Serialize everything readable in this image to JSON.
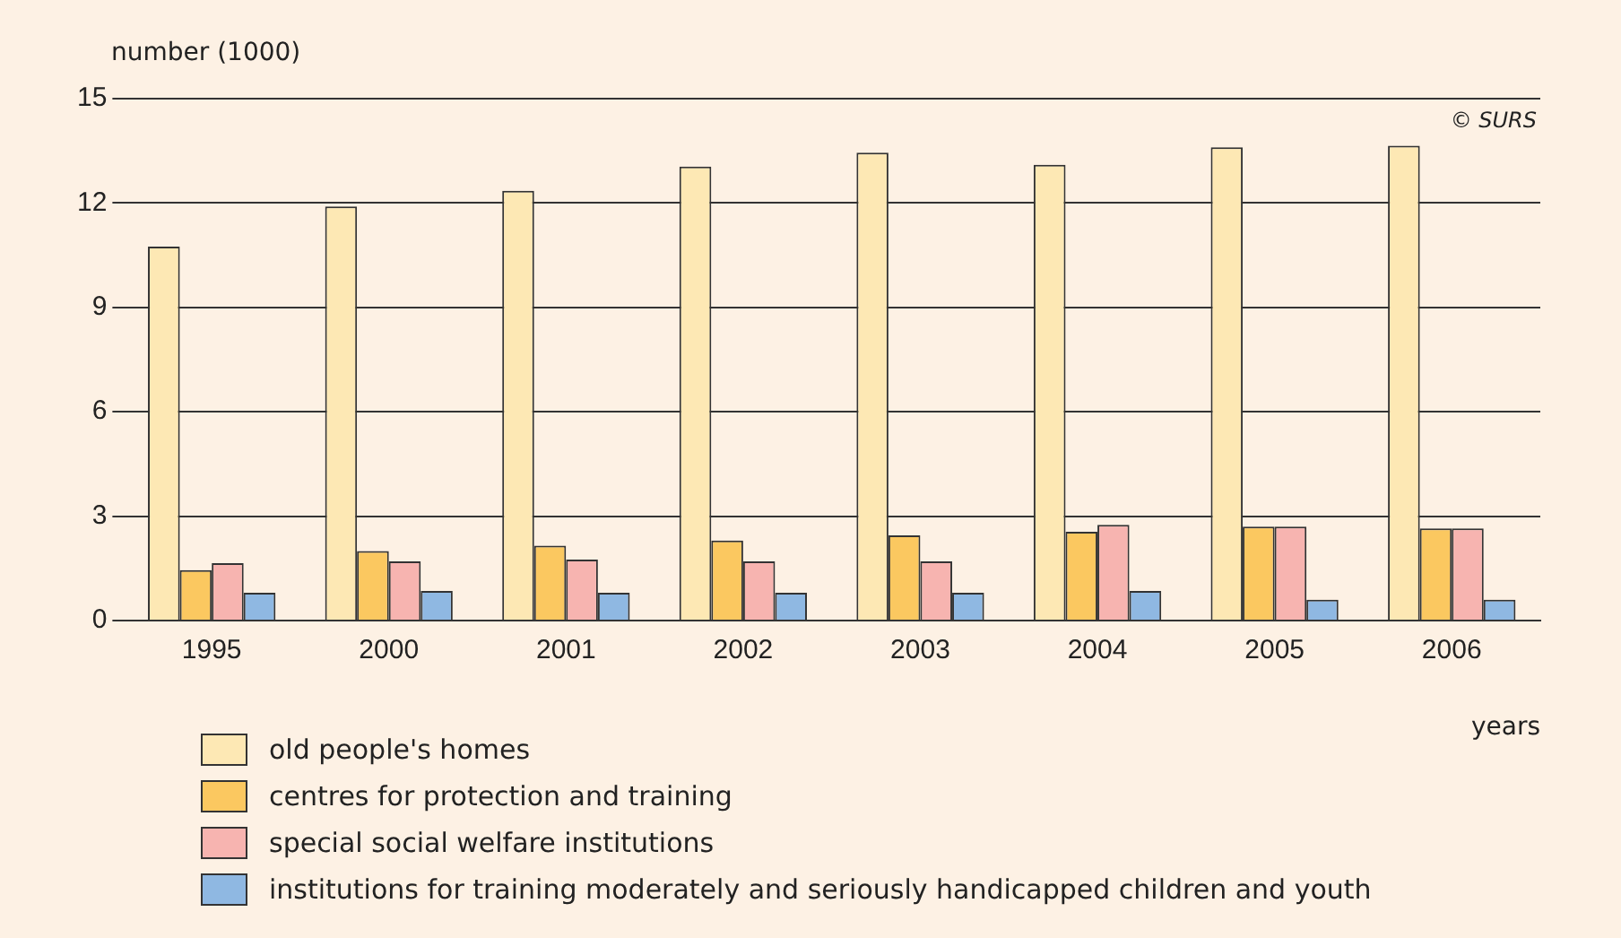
{
  "chart_data": {
    "type": "bar",
    "ylabel": "number (1000)",
    "xlabel": "years",
    "annotations": [
      "© SURS"
    ],
    "categories": [
      "1995",
      "2000",
      "2001",
      "2002",
      "2003",
      "2004",
      "2005",
      "2006"
    ],
    "series": [
      {
        "name": "old people's homes",
        "color": "#fde8b4",
        "values": [
          10.75,
          11.9,
          12.35,
          13.05,
          13.45,
          13.1,
          13.6,
          13.65
        ]
      },
      {
        "name": "centres for protection and training",
        "color": "#fbc860",
        "values": [
          1.45,
          2.0,
          2.15,
          2.3,
          2.45,
          2.55,
          2.7,
          2.65
        ]
      },
      {
        "name": "special social welfare institutions",
        "color": "#f7b4b0",
        "values": [
          1.65,
          1.7,
          1.75,
          1.7,
          1.7,
          2.75,
          2.7,
          2.65
        ]
      },
      {
        "name": "institutions for training moderately and seriously handicapped children and youth",
        "color": "#8fb8e2",
        "values": [
          0.8,
          0.85,
          0.8,
          0.8,
          0.8,
          0.85,
          0.6,
          0.6
        ]
      }
    ],
    "ylim": [
      0,
      15
    ],
    "yticks": [
      0,
      3,
      6,
      9,
      12,
      15
    ],
    "grid": "y",
    "legend": "bottom"
  }
}
